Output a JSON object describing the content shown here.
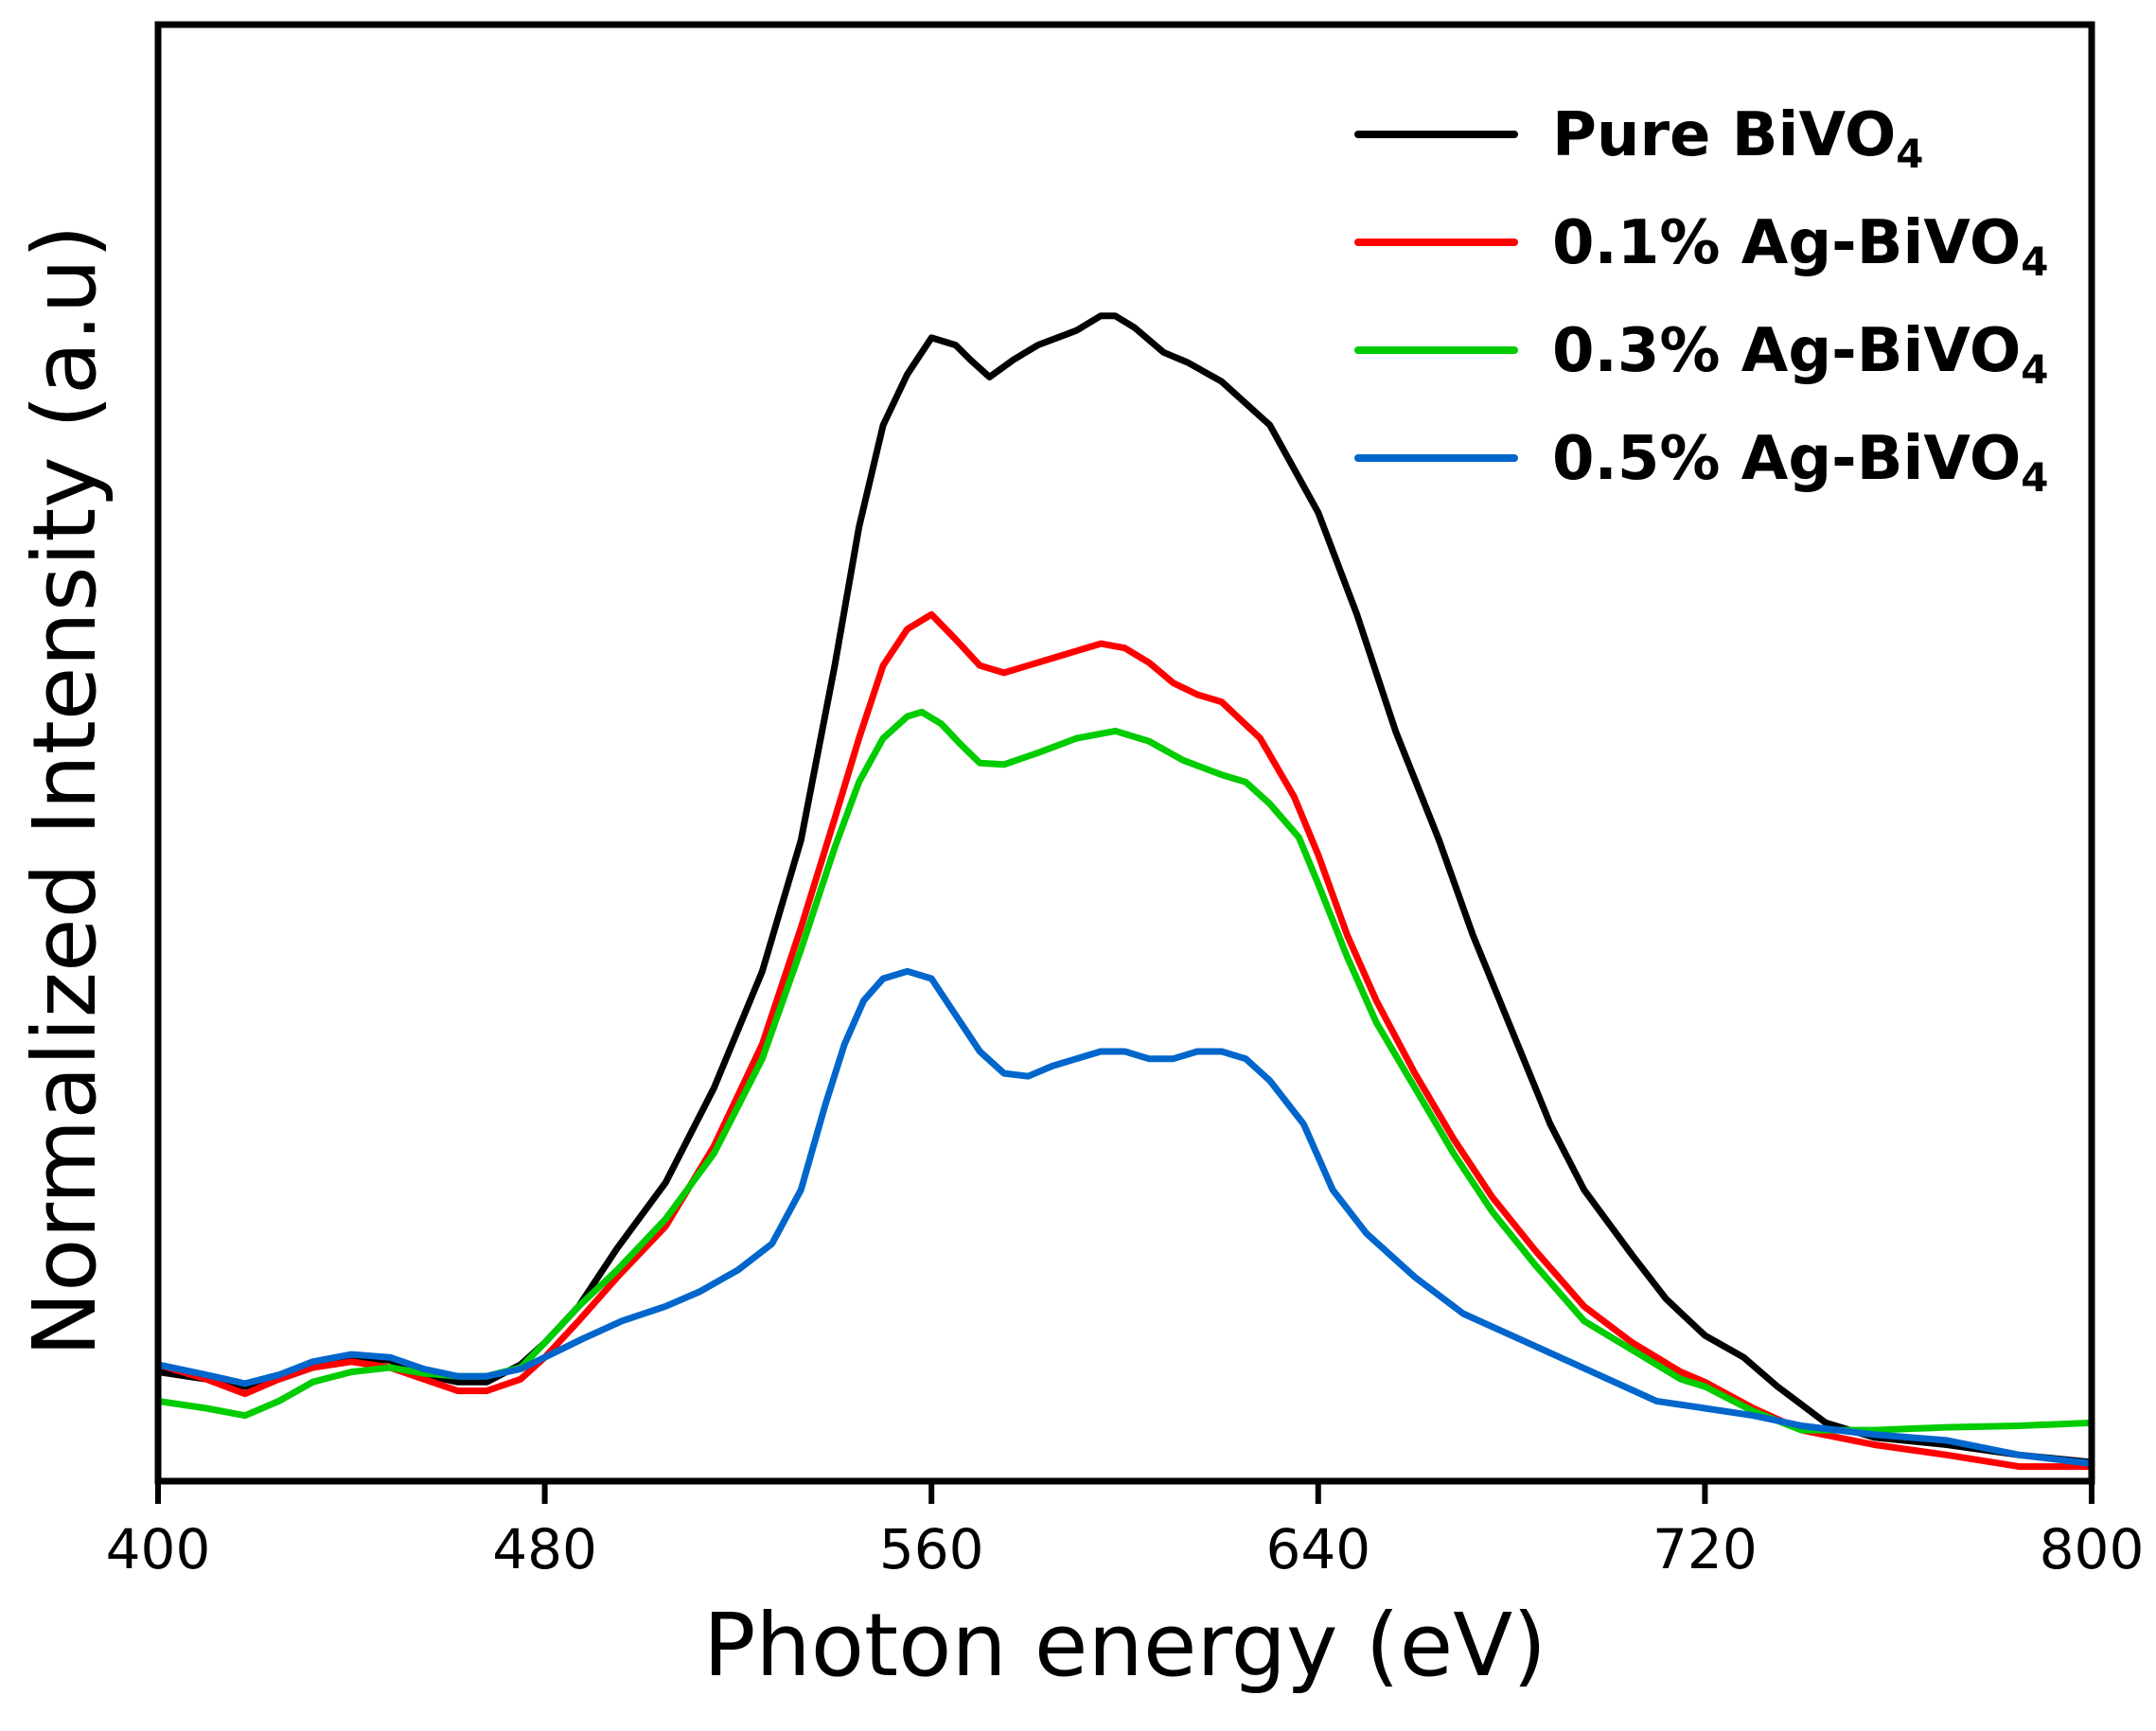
{
  "chart_data": {
    "type": "line",
    "xlabel": "Photon energy (eV)",
    "ylabel": "Normalized Intensity (a.u)",
    "xlim": [
      400,
      800
    ],
    "ylim": [
      0,
      1
    ],
    "xticks": [
      400,
      480,
      560,
      640,
      720,
      800
    ],
    "grid": false,
    "legend_position": "top-right",
    "series": [
      {
        "name": "Pure BiVO",
        "subscript": "4",
        "color": "#000000",
        "points": [
          [
            400,
            0.075
          ],
          [
            410,
            0.07
          ],
          [
            418,
            0.065
          ],
          [
            425,
            0.07
          ],
          [
            432,
            0.078
          ],
          [
            440,
            0.085
          ],
          [
            448,
            0.083
          ],
          [
            455,
            0.073
          ],
          [
            462,
            0.068
          ],
          [
            468,
            0.068
          ],
          [
            475,
            0.08
          ],
          [
            480,
            0.095
          ],
          [
            487,
            0.12
          ],
          [
            495,
            0.16
          ],
          [
            505,
            0.205
          ],
          [
            515,
            0.27
          ],
          [
            525,
            0.35
          ],
          [
            533,
            0.44
          ],
          [
            540,
            0.56
          ],
          [
            545,
            0.655
          ],
          [
            550,
            0.725
          ],
          [
            555,
            0.76
          ],
          [
            560,
            0.785
          ],
          [
            565,
            0.78
          ],
          [
            568,
            0.77
          ],
          [
            572,
            0.758
          ],
          [
            577,
            0.77
          ],
          [
            582,
            0.78
          ],
          [
            590,
            0.79
          ],
          [
            595,
            0.8
          ],
          [
            598,
            0.8
          ],
          [
            602,
            0.792
          ],
          [
            608,
            0.775
          ],
          [
            613,
            0.768
          ],
          [
            620,
            0.755
          ],
          [
            630,
            0.725
          ],
          [
            640,
            0.665
          ],
          [
            648,
            0.595
          ],
          [
            656,
            0.515
          ],
          [
            665,
            0.44
          ],
          [
            672,
            0.375
          ],
          [
            680,
            0.31
          ],
          [
            688,
            0.245
          ],
          [
            695,
            0.2
          ],
          [
            705,
            0.155
          ],
          [
            712,
            0.125
          ],
          [
            720,
            0.1
          ],
          [
            728,
            0.085
          ],
          [
            735,
            0.065
          ],
          [
            745,
            0.04
          ],
          [
            755,
            0.03
          ],
          [
            770,
            0.025
          ],
          [
            785,
            0.018
          ],
          [
            800,
            0.013
          ]
        ]
      },
      {
        "name": "0.1% Ag-BiVO",
        "subscript": "4",
        "color": "#ff0000",
        "points": [
          [
            400,
            0.08
          ],
          [
            410,
            0.07
          ],
          [
            418,
            0.06
          ],
          [
            425,
            0.07
          ],
          [
            432,
            0.078
          ],
          [
            440,
            0.082
          ],
          [
            448,
            0.078
          ],
          [
            455,
            0.07
          ],
          [
            462,
            0.062
          ],
          [
            468,
            0.062
          ],
          [
            475,
            0.07
          ],
          [
            480,
            0.085
          ],
          [
            487,
            0.11
          ],
          [
            495,
            0.14
          ],
          [
            505,
            0.175
          ],
          [
            515,
            0.23
          ],
          [
            525,
            0.3
          ],
          [
            533,
            0.38
          ],
          [
            540,
            0.455
          ],
          [
            545,
            0.51
          ],
          [
            550,
            0.56
          ],
          [
            555,
            0.585
          ],
          [
            560,
            0.595
          ],
          [
            565,
            0.578
          ],
          [
            570,
            0.56
          ],
          [
            575,
            0.555
          ],
          [
            580,
            0.56
          ],
          [
            585,
            0.565
          ],
          [
            590,
            0.57
          ],
          [
            595,
            0.575
          ],
          [
            600,
            0.572
          ],
          [
            605,
            0.562
          ],
          [
            610,
            0.548
          ],
          [
            615,
            0.54
          ],
          [
            620,
            0.535
          ],
          [
            628,
            0.51
          ],
          [
            635,
            0.47
          ],
          [
            640,
            0.43
          ],
          [
            646,
            0.375
          ],
          [
            652,
            0.33
          ],
          [
            660,
            0.28
          ],
          [
            668,
            0.235
          ],
          [
            676,
            0.195
          ],
          [
            685,
            0.158
          ],
          [
            695,
            0.12
          ],
          [
            705,
            0.095
          ],
          [
            715,
            0.075
          ],
          [
            720,
            0.068
          ],
          [
            730,
            0.05
          ],
          [
            740,
            0.035
          ],
          [
            755,
            0.025
          ],
          [
            770,
            0.018
          ],
          [
            785,
            0.01
          ],
          [
            800,
            0.01
          ]
        ]
      },
      {
        "name": "0.3% Ag-BiVO",
        "subscript": "4",
        "color": "#00cc00",
        "points": [
          [
            400,
            0.055
          ],
          [
            410,
            0.05
          ],
          [
            418,
            0.045
          ],
          [
            425,
            0.055
          ],
          [
            432,
            0.068
          ],
          [
            440,
            0.075
          ],
          [
            448,
            0.078
          ],
          [
            455,
            0.074
          ],
          [
            462,
            0.072
          ],
          [
            468,
            0.072
          ],
          [
            475,
            0.078
          ],
          [
            480,
            0.095
          ],
          [
            487,
            0.12
          ],
          [
            495,
            0.145
          ],
          [
            505,
            0.18
          ],
          [
            515,
            0.225
          ],
          [
            525,
            0.29
          ],
          [
            533,
            0.365
          ],
          [
            540,
            0.435
          ],
          [
            545,
            0.48
          ],
          [
            550,
            0.51
          ],
          [
            555,
            0.525
          ],
          [
            558,
            0.528
          ],
          [
            562,
            0.52
          ],
          [
            566,
            0.506
          ],
          [
            570,
            0.493
          ],
          [
            575,
            0.492
          ],
          [
            582,
            0.5
          ],
          [
            590,
            0.51
          ],
          [
            598,
            0.515
          ],
          [
            605,
            0.508
          ],
          [
            612,
            0.495
          ],
          [
            620,
            0.485
          ],
          [
            625,
            0.48
          ],
          [
            630,
            0.465
          ],
          [
            636,
            0.442
          ],
          [
            640,
            0.41
          ],
          [
            646,
            0.36
          ],
          [
            652,
            0.315
          ],
          [
            660,
            0.27
          ],
          [
            668,
            0.225
          ],
          [
            676,
            0.185
          ],
          [
            685,
            0.148
          ],
          [
            695,
            0.11
          ],
          [
            705,
            0.09
          ],
          [
            715,
            0.07
          ],
          [
            720,
            0.065
          ],
          [
            730,
            0.048
          ],
          [
            740,
            0.035
          ],
          [
            755,
            0.035
          ],
          [
            770,
            0.037
          ],
          [
            785,
            0.038
          ],
          [
            800,
            0.04
          ]
        ]
      },
      {
        "name": "0.5% Ag-BiVO",
        "subscript": "4",
        "color": "#0066cc",
        "points": [
          [
            400,
            0.08
          ],
          [
            410,
            0.073
          ],
          [
            418,
            0.067
          ],
          [
            425,
            0.073
          ],
          [
            432,
            0.082
          ],
          [
            440,
            0.087
          ],
          [
            448,
            0.085
          ],
          [
            455,
            0.077
          ],
          [
            462,
            0.072
          ],
          [
            468,
            0.072
          ],
          [
            475,
            0.077
          ],
          [
            480,
            0.085
          ],
          [
            488,
            0.098
          ],
          [
            496,
            0.11
          ],
          [
            505,
            0.12
          ],
          [
            512,
            0.13
          ],
          [
            520,
            0.145
          ],
          [
            527,
            0.163
          ],
          [
            533,
            0.2
          ],
          [
            538,
            0.258
          ],
          [
            542,
            0.3
          ],
          [
            546,
            0.33
          ],
          [
            550,
            0.345
          ],
          [
            555,
            0.35
          ],
          [
            560,
            0.345
          ],
          [
            565,
            0.32
          ],
          [
            570,
            0.295
          ],
          [
            575,
            0.28
          ],
          [
            580,
            0.278
          ],
          [
            585,
            0.285
          ],
          [
            590,
            0.29
          ],
          [
            595,
            0.295
          ],
          [
            600,
            0.295
          ],
          [
            605,
            0.29
          ],
          [
            610,
            0.29
          ],
          [
            615,
            0.295
          ],
          [
            620,
            0.295
          ],
          [
            625,
            0.29
          ],
          [
            630,
            0.275
          ],
          [
            637,
            0.245
          ],
          [
            643,
            0.2
          ],
          [
            650,
            0.17
          ],
          [
            660,
            0.14
          ],
          [
            670,
            0.115
          ],
          [
            680,
            0.1
          ],
          [
            690,
            0.085
          ],
          [
            700,
            0.07
          ],
          [
            710,
            0.055
          ],
          [
            720,
            0.05
          ],
          [
            730,
            0.045
          ],
          [
            740,
            0.038
          ],
          [
            755,
            0.032
          ],
          [
            770,
            0.028
          ],
          [
            785,
            0.018
          ],
          [
            800,
            0.012
          ]
        ]
      }
    ]
  }
}
